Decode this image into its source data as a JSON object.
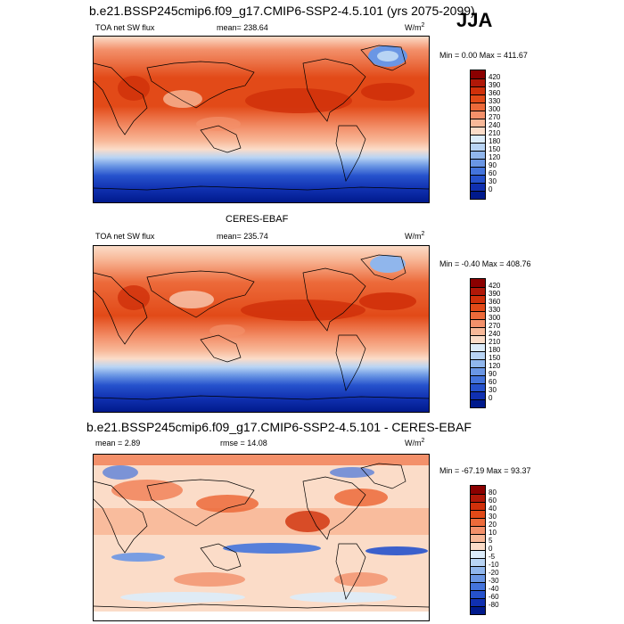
{
  "season": "JJA",
  "panels": [
    {
      "title": "b.e21.BSSP245cmip6.f09_g17.CMIP6-SSP2-4.5.101 (yrs 2075-2099)",
      "left_label": "TOA net SW flux",
      "center_label": "mean= 238.64",
      "units_base": "W/m",
      "units_exp": "2",
      "minmax": "Min =  0.00 Max = 411.67",
      "colorbar": {
        "labels": [
          "420",
          "390",
          "360",
          "330",
          "300",
          "270",
          "240",
          "210",
          "180",
          "150",
          "120",
          "90",
          "60",
          "30",
          "0"
        ],
        "colors": [
          "#8b0000",
          "#b01808",
          "#d0300a",
          "#e24a18",
          "#ec6a3a",
          "#f3906a",
          "#f8b898",
          "#fbdcc8",
          "#dcecfa",
          "#b8d4f4",
          "#90b6ec",
          "#6a96e4",
          "#4474dc",
          "#2652cc",
          "#1030b0",
          "#001a8c"
        ]
      }
    },
    {
      "title": "CERES-EBAF",
      "left_label": "TOA net SW flux",
      "center_label": "mean= 235.74",
      "units_base": "W/m",
      "units_exp": "2",
      "minmax": "Min = -0.40 Max = 408.76",
      "colorbar": {
        "labels": [
          "420",
          "390",
          "360",
          "330",
          "300",
          "270",
          "240",
          "210",
          "180",
          "150",
          "120",
          "90",
          "60",
          "30",
          "0"
        ],
        "colors": [
          "#8b0000",
          "#b01808",
          "#d0300a",
          "#e24a18",
          "#ec6a3a",
          "#f3906a",
          "#f8b898",
          "#fbdcc8",
          "#dcecfa",
          "#b8d4f4",
          "#90b6ec",
          "#6a96e4",
          "#4474dc",
          "#2652cc",
          "#1030b0",
          "#001a8c"
        ]
      }
    },
    {
      "title": "b.e21.BSSP245cmip6.f09_g17.CMIP6-SSP2-4.5.101 - CERES-EBAF",
      "left_label": "mean =   2.89",
      "center_label": "rmse =  14.08",
      "units_base": "W/m",
      "units_exp": "2",
      "minmax": "Min = -67.19 Max = 93.37",
      "colorbar": {
        "labels": [
          "80",
          "60",
          "40",
          "30",
          "20",
          "10",
          "5",
          "0",
          "-5",
          "-10",
          "-20",
          "-30",
          "-40",
          "-60",
          "-80"
        ],
        "colors": [
          "#8b0000",
          "#b01808",
          "#d0300a",
          "#e24a18",
          "#ec6a3a",
          "#f3906a",
          "#f8b898",
          "#fbdcc8",
          "#dcecfa",
          "#b8d4f4",
          "#90b6ec",
          "#6a96e4",
          "#4474dc",
          "#2652cc",
          "#1030b0",
          "#001a8c"
        ]
      }
    }
  ],
  "chart_data": [
    {
      "type": "heatmap",
      "title": "b.e21.BSSP245cmip6.f09_g17.CMIP6-SSP2-4.5.101 (yrs 2075-2099)",
      "variable": "TOA net SW flux",
      "units": "W/m2",
      "season": "JJA",
      "mean": 238.64,
      "min": 0.0,
      "max": 411.67,
      "levels": [
        0,
        30,
        60,
        90,
        120,
        150,
        180,
        210,
        240,
        270,
        300,
        330,
        360,
        390,
        420
      ]
    },
    {
      "type": "heatmap",
      "title": "CERES-EBAF",
      "variable": "TOA net SW flux",
      "units": "W/m2",
      "season": "JJA",
      "mean": 235.74,
      "min": -0.4,
      "max": 408.76,
      "levels": [
        0,
        30,
        60,
        90,
        120,
        150,
        180,
        210,
        240,
        270,
        300,
        330,
        360,
        390,
        420
      ]
    },
    {
      "type": "heatmap",
      "title": "b.e21.BSSP245cmip6.f09_g17.CMIP6-SSP2-4.5.101 - CERES-EBAF",
      "units": "W/m2",
      "season": "JJA",
      "mean": 2.89,
      "rmse": 14.08,
      "min": -67.19,
      "max": 93.37,
      "levels": [
        -80,
        -60,
        -40,
        -30,
        -20,
        -10,
        -5,
        0,
        5,
        10,
        20,
        30,
        40,
        60,
        80
      ]
    }
  ]
}
